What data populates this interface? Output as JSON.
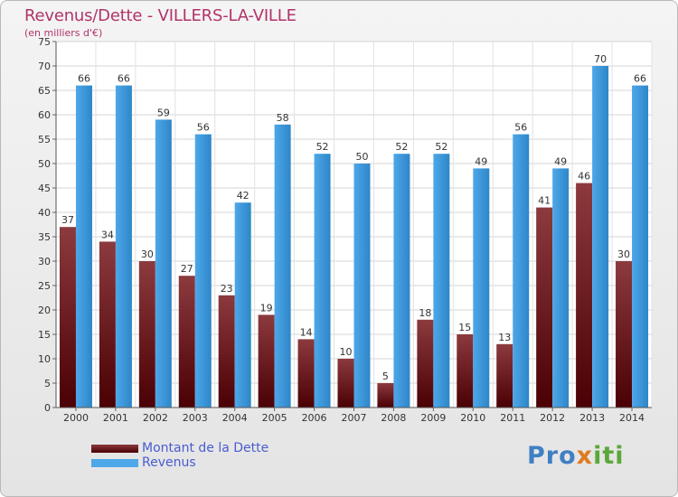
{
  "title": "Revenus/Dette - VILLERS-LA-VILLE",
  "subtitle": "(en milliers d'€)",
  "colors": {
    "dette_top": "#8c3a3e",
    "dette_bottom": "#4a0004",
    "revenus": "#4ea7e8",
    "revenus_dark": "#2d86c8",
    "title": "#b0346a",
    "legend_text": "#4a5cd0"
  },
  "chart_data": {
    "type": "bar",
    "title": "Revenus/Dette - VILLERS-LA-VILLE",
    "ylabel": "(en milliers d'€)",
    "xlabel": "",
    "ylim": [
      0,
      75
    ],
    "yticks": [
      0,
      5,
      10,
      15,
      20,
      25,
      30,
      35,
      40,
      45,
      50,
      55,
      60,
      65,
      70,
      75
    ],
    "grid": true,
    "legend_position": "bottom-left",
    "categories": [
      "2000",
      "2001",
      "2002",
      "2003",
      "2004",
      "2005",
      "2006",
      "2007",
      "2008",
      "2009",
      "2010",
      "2011",
      "2012",
      "2013",
      "2014"
    ],
    "series": [
      {
        "name": "Montant de la Dette",
        "values": [
          37,
          34,
          30,
          27,
          23,
          19,
          14,
          10,
          5,
          18,
          15,
          13,
          41,
          46,
          30
        ]
      },
      {
        "name": "Revenus",
        "values": [
          66,
          66,
          59,
          56,
          42,
          58,
          52,
          50,
          52,
          52,
          49,
          56,
          49,
          70,
          66
        ]
      }
    ]
  },
  "legend": {
    "items": [
      {
        "label": "Montant de la Dette"
      },
      {
        "label": "Revenus"
      }
    ]
  },
  "brand": {
    "p1": "Pro",
    "p2": "x",
    "p3": "iti"
  }
}
